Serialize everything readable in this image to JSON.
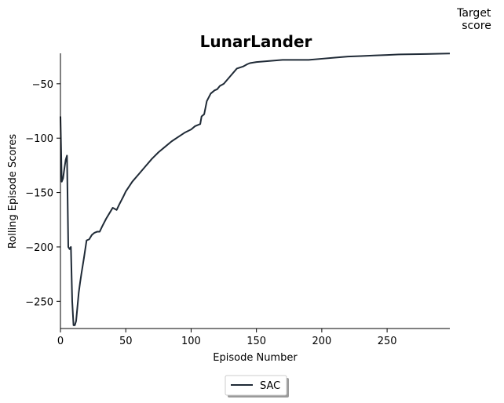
{
  "chart_data": {
    "type": "line",
    "title": "LunarLander",
    "xlabel": "Episode Number",
    "ylabel": "Rolling Episode Scores",
    "xlim": [
      0,
      298
    ],
    "ylim": [
      -275,
      -22
    ],
    "xticks": [
      0,
      50,
      100,
      150,
      200,
      250
    ],
    "yticks": [
      -50,
      -100,
      -150,
      -200,
      -250
    ],
    "annotation": "Target\nscore",
    "legend": {
      "placement": "bottom-center",
      "entries": [
        "SAC"
      ]
    },
    "grid": false,
    "series": [
      {
        "name": "SAC",
        "color": "#1f2a36",
        "x": [
          0,
          1,
          2,
          3,
          4,
          5,
          6,
          7,
          8,
          9,
          10,
          11,
          12,
          13,
          14,
          15,
          16,
          18,
          20,
          22,
          24,
          26,
          28,
          30,
          32,
          35,
          38,
          40,
          43,
          45,
          48,
          50,
          55,
          60,
          65,
          70,
          75,
          80,
          85,
          90,
          95,
          100,
          103,
          105,
          107,
          108,
          110,
          112,
          115,
          118,
          120,
          122,
          125,
          130,
          135,
          140,
          143,
          145,
          150,
          160,
          170,
          180,
          190,
          200,
          210,
          220,
          230,
          240,
          250,
          260,
          270,
          280,
          290,
          298
        ],
        "y": [
          -80,
          -140,
          -137,
          -128,
          -120,
          -116,
          -200,
          -202,
          -200,
          -250,
          -272,
          -272,
          -268,
          -255,
          -242,
          -233,
          -225,
          -210,
          -194,
          -193,
          -189,
          -187,
          -186,
          -186,
          -181,
          -174,
          -168,
          -164,
          -166,
          -161,
          -154,
          -149,
          -140,
          -133,
          -126,
          -119,
          -113,
          -108,
          -103,
          -99,
          -95,
          -92,
          -89,
          -88,
          -87,
          -80,
          -78,
          -66,
          -59,
          -56,
          -55,
          -52,
          -50,
          -43,
          -36,
          -34,
          -32,
          -31,
          -30,
          -29,
          -28,
          -28,
          -28,
          -27,
          -26,
          -25,
          -24.5,
          -24,
          -23.5,
          -23,
          -22.8,
          -22.6,
          -22.4,
          -22.2
        ]
      }
    ]
  }
}
